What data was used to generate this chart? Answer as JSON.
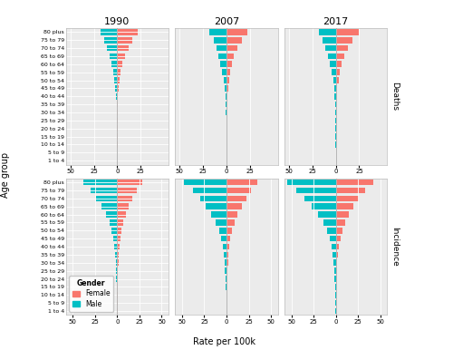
{
  "age_groups": [
    "1 to 4",
    "5 to 9",
    "10 to 14",
    "15 to 19",
    "20 to 24",
    "25 to 29",
    "30 to 34",
    "35 to 39",
    "40 to 44",
    "45 to 49",
    "50 to 54",
    "55 to 59",
    "60 to 64",
    "65 to 69",
    "70 to 74",
    "75 to 79",
    "80 plus"
  ],
  "years": [
    "1990",
    "2007",
    "2017"
  ],
  "deaths": {
    "1990": {
      "male": [
        0.08,
        0.1,
        0.15,
        0.2,
        0.3,
        0.4,
        0.5,
        0.8,
        1.3,
        2.0,
        3.0,
        4.5,
        6.5,
        8.5,
        11.0,
        14.0,
        18.0
      ],
      "female": [
        0.06,
        0.08,
        0.12,
        0.18,
        0.25,
        0.3,
        0.4,
        0.6,
        1.0,
        1.5,
        2.5,
        3.8,
        5.5,
        8.0,
        12.0,
        16.0,
        22.0
      ]
    },
    "2007": {
      "male": [
        0.08,
        0.1,
        0.15,
        0.2,
        0.3,
        0.4,
        0.5,
        0.8,
        1.3,
        2.0,
        3.0,
        4.5,
        6.5,
        8.5,
        11.0,
        14.0,
        18.0
      ],
      "female": [
        0.06,
        0.08,
        0.12,
        0.18,
        0.25,
        0.3,
        0.4,
        0.6,
        1.0,
        1.5,
        2.5,
        3.8,
        5.5,
        8.0,
        12.0,
        16.0,
        22.0
      ]
    },
    "2017": {
      "male": [
        0.08,
        0.1,
        0.15,
        0.2,
        0.3,
        0.4,
        0.5,
        0.8,
        1.3,
        2.0,
        3.0,
        4.5,
        6.5,
        8.5,
        11.0,
        14.0,
        18.0
      ],
      "female": [
        0.07,
        0.09,
        0.14,
        0.2,
        0.28,
        0.35,
        0.5,
        0.7,
        1.2,
        1.8,
        3.0,
        4.5,
        6.5,
        9.0,
        13.0,
        18.0,
        25.0
      ]
    }
  },
  "incidence": {
    "1990": {
      "male": [
        0.15,
        0.2,
        0.4,
        0.7,
        1.0,
        1.2,
        1.5,
        2.0,
        3.0,
        4.5,
        6.5,
        9.0,
        13.0,
        18.0,
        24.0,
        30.0,
        38.0
      ],
      "female": [
        0.12,
        0.18,
        0.35,
        0.6,
        0.9,
        1.0,
        1.3,
        1.8,
        2.5,
        3.5,
        5.0,
        7.0,
        9.5,
        13.0,
        17.0,
        22.0,
        28.0
      ]
    },
    "2007": {
      "male": [
        0.18,
        0.25,
        0.5,
        0.9,
        1.3,
        1.6,
        2.0,
        2.8,
        4.0,
        6.0,
        8.5,
        12.0,
        17.0,
        23.0,
        30.0,
        38.0,
        48.0
      ],
      "female": [
        0.15,
        0.22,
        0.42,
        0.75,
        1.1,
        1.3,
        1.6,
        2.2,
        3.2,
        4.5,
        6.5,
        9.0,
        12.5,
        17.0,
        22.0,
        28.0,
        35.0
      ]
    },
    "2017": {
      "male": [
        0.22,
        0.3,
        0.6,
        1.1,
        1.6,
        1.9,
        2.4,
        3.3,
        4.8,
        7.0,
        10.0,
        14.0,
        20.0,
        27.0,
        35.0,
        44.0,
        55.0
      ],
      "female": [
        0.18,
        0.26,
        0.5,
        0.9,
        1.3,
        1.5,
        1.9,
        2.7,
        3.8,
        5.5,
        7.8,
        11.0,
        15.0,
        20.0,
        26.0,
        33.0,
        42.0
      ]
    }
  },
  "female_color": "#F8766D",
  "male_color": "#00BFC4",
  "background_color": "#EBEBEB",
  "grid_color": "white"
}
